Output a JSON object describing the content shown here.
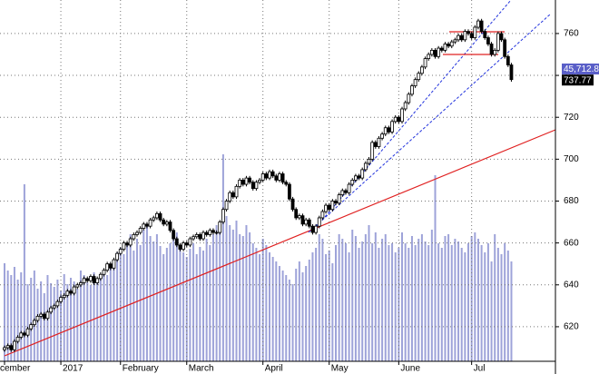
{
  "chart_data": {
    "type": "candlestick",
    "open": [
      609,
      610,
      611,
      609,
      613,
      615,
      617,
      616,
      619,
      621,
      623,
      625,
      626,
      624,
      627,
      629,
      630,
      632,
      634,
      635,
      637,
      636,
      639,
      640,
      641,
      643,
      642,
      644,
      641,
      643,
      645,
      647,
      650,
      648,
      652,
      655,
      657,
      660,
      659,
      662,
      664,
      665,
      667,
      669,
      668,
      671,
      672,
      674,
      671,
      669,
      670,
      666,
      662,
      659,
      657,
      660,
      659,
      662,
      663,
      664,
      662,
      665,
      664,
      666,
      665,
      665,
      670,
      676,
      680,
      684,
      682,
      687,
      690,
      688,
      691,
      689,
      686,
      689,
      690,
      693,
      691,
      694,
      692,
      690,
      693,
      689,
      688,
      681,
      676,
      672,
      673,
      669,
      671,
      668,
      665,
      668,
      672,
      675,
      678,
      676,
      680,
      679,
      683,
      685,
      684,
      688,
      690,
      692,
      691,
      695,
      698,
      700,
      708,
      706,
      710,
      712,
      715,
      713,
      718,
      720,
      718,
      724,
      727,
      731,
      735,
      738,
      741,
      744,
      748,
      750,
      752,
      749,
      753,
      752,
      755,
      754,
      756,
      757,
      759,
      757,
      761,
      760,
      758,
      763,
      766,
      761,
      758,
      755,
      750,
      752,
      760,
      757,
      749,
      745
    ],
    "high": [
      611,
      612,
      612,
      614,
      616,
      618,
      618,
      620,
      622,
      624,
      626,
      627,
      627,
      628,
      630,
      631,
      633,
      635,
      636,
      638,
      638,
      640,
      641,
      642,
      644,
      644,
      645,
      645,
      644,
      646,
      648,
      651,
      651,
      653,
      656,
      658,
      661,
      661,
      663,
      665,
      666,
      668,
      670,
      670,
      672,
      673,
      675,
      675,
      672,
      671,
      671,
      667,
      663,
      660,
      661,
      661,
      663,
      664,
      665,
      665,
      666,
      666,
      667,
      667,
      666,
      671,
      677,
      681,
      685,
      685,
      688,
      691,
      691,
      692,
      692,
      690,
      690,
      691,
      694,
      694,
      695,
      695,
      693,
      694,
      694,
      690,
      689,
      682,
      677,
      674,
      674,
      672,
      672,
      669,
      669,
      673,
      676,
      679,
      679,
      681,
      681,
      684,
      686,
      686,
      689,
      691,
      693,
      693,
      696,
      699,
      701,
      709,
      709,
      711,
      713,
      716,
      716,
      719,
      721,
      721,
      725,
      728,
      732,
      736,
      739,
      742,
      745,
      749,
      751,
      753,
      753,
      754,
      754,
      756,
      756,
      757,
      758,
      760,
      760,
      762,
      762,
      761,
      764,
      767,
      767,
      762,
      759,
      756,
      753,
      761,
      761,
      758,
      750,
      746
    ],
    "low": [
      608,
      609,
      608,
      608,
      612,
      614,
      615,
      615,
      618,
      620,
      622,
      624,
      623,
      623,
      626,
      628,
      629,
      631,
      633,
      634,
      635,
      635,
      638,
      639,
      640,
      641,
      641,
      640,
      640,
      642,
      644,
      646,
      647,
      647,
      651,
      654,
      656,
      658,
      658,
      661,
      663,
      664,
      666,
      667,
      667,
      670,
      671,
      670,
      668,
      668,
      665,
      661,
      658,
      656,
      656,
      658,
      658,
      661,
      662,
      661,
      661,
      663,
      663,
      664,
      664,
      664,
      669,
      675,
      679,
      681,
      681,
      686,
      687,
      687,
      688,
      685,
      685,
      688,
      689,
      690,
      690,
      691,
      689,
      689,
      688,
      687,
      680,
      675,
      671,
      671,
      668,
      668,
      667,
      664,
      664,
      667,
      671,
      674,
      675,
      675,
      678,
      678,
      682,
      683,
      683,
      687,
      689,
      690,
      690,
      694,
      697,
      699,
      705,
      705,
      709,
      711,
      712,
      712,
      717,
      717,
      717,
      723,
      726,
      730,
      734,
      737,
      740,
      743,
      747,
      749,
      748,
      748,
      751,
      751,
      753,
      753,
      755,
      756,
      756,
      756,
      759,
      757,
      757,
      762,
      760,
      757,
      754,
      749,
      749,
      751,
      756,
      748,
      744,
      737
    ],
    "close": [
      610,
      611,
      609,
      613,
      615,
      617,
      616,
      619,
      621,
      623,
      625,
      626,
      624,
      627,
      629,
      630,
      632,
      634,
      635,
      637,
      636,
      639,
      640,
      641,
      643,
      642,
      644,
      641,
      643,
      645,
      647,
      650,
      648,
      652,
      655,
      657,
      660,
      659,
      662,
      664,
      665,
      667,
      669,
      668,
      671,
      672,
      674,
      671,
      669,
      670,
      666,
      662,
      659,
      657,
      660,
      659,
      662,
      663,
      664,
      662,
      665,
      664,
      666,
      665,
      665,
      670,
      676,
      680,
      684,
      682,
      687,
      690,
      688,
      691,
      689,
      686,
      689,
      690,
      693,
      691,
      694,
      692,
      690,
      693,
      689,
      688,
      681,
      676,
      672,
      673,
      669,
      671,
      668,
      665,
      668,
      672,
      675,
      678,
      676,
      680,
      679,
      683,
      685,
      684,
      688,
      690,
      692,
      691,
      695,
      698,
      700,
      708,
      706,
      710,
      712,
      715,
      713,
      718,
      720,
      718,
      724,
      727,
      731,
      735,
      738,
      741,
      744,
      748,
      750,
      752,
      749,
      753,
      752,
      755,
      754,
      756,
      757,
      759,
      757,
      761,
      760,
      758,
      763,
      766,
      761,
      758,
      755,
      750,
      752,
      760,
      757,
      749,
      745,
      738
    ],
    "volume": [
      108,
      100,
      95,
      104,
      90,
      98,
      195,
      85,
      92,
      100,
      80,
      88,
      75,
      95,
      86,
      82,
      90,
      78,
      96,
      85,
      92,
      88,
      80,
      100,
      95,
      87,
      84,
      98,
      90,
      93,
      100,
      95,
      105,
      110,
      120,
      125,
      118,
      130,
      140,
      122,
      135,
      128,
      145,
      150,
      138,
      132,
      140,
      127,
      118,
      125,
      130,
      136,
      142,
      128,
      120,
      115,
      124,
      130,
      118,
      126,
      122,
      135,
      128,
      140,
      150,
      145,
      228,
      160,
      150,
      145,
      155,
      140,
      138,
      150,
      142,
      130,
      125,
      118,
      135,
      128,
      120,
      115,
      110,
      105,
      100,
      95,
      90,
      85,
      102,
      110,
      98,
      105,
      112,
      120,
      125,
      140,
      135,
      118,
      122,
      108,
      128,
      140,
      135,
      130,
      120,
      145,
      138,
      125,
      132,
      140,
      150,
      130,
      142,
      125,
      135,
      140,
      128,
      130,
      120,
      125,
      142,
      130,
      125,
      138,
      128,
      135,
      140,
      132,
      128,
      145,
      205,
      130,
      125,
      138,
      140,
      128,
      135,
      132,
      125,
      120,
      130,
      138,
      142,
      135,
      128,
      120,
      130,
      110,
      140,
      125,
      118,
      130,
      122,
      110
    ],
    "volume_color": "#9ea3d9",
    "ylim": [
      603.5,
      776
    ],
    "yticks": [
      620,
      640,
      660,
      680,
      700,
      720,
      740,
      760
    ],
    "vlim": [
      0,
      398
    ],
    "xlim": [
      -1.37,
      166.3
    ],
    "xticks": [
      {
        "value": 0,
        "label": "cember"
      },
      {
        "value": 17,
        "label": "2017"
      },
      {
        "value": 35,
        "label": "February"
      },
      {
        "value": 55,
        "label": "March"
      },
      {
        "value": 78,
        "label": "April"
      },
      {
        "value": 98,
        "label": "May"
      },
      {
        "value": 119,
        "label": "June"
      },
      {
        "value": 141,
        "label": "Jul"
      }
    ],
    "grid": true,
    "volume_label": "45,712.87",
    "last_price": {
      "value": 737.77,
      "label": "737.77"
    }
  }
}
